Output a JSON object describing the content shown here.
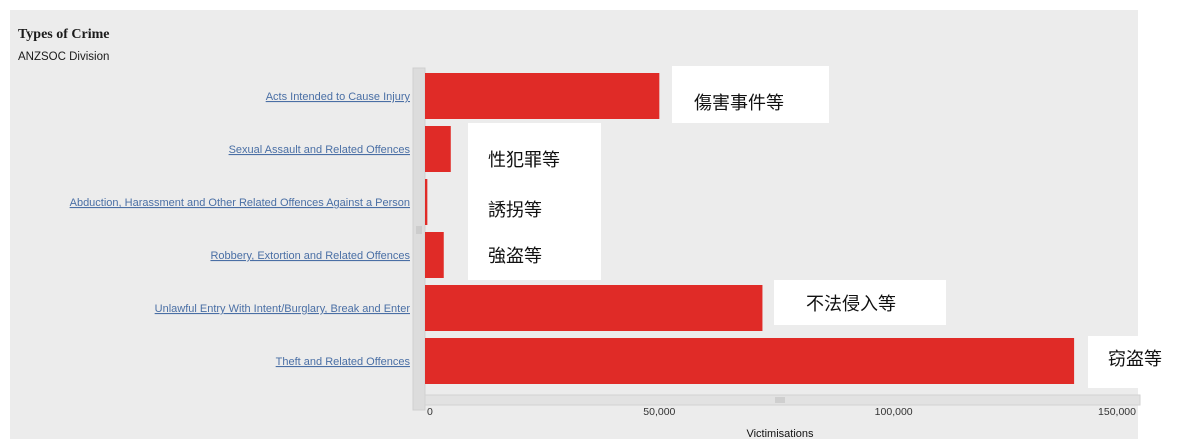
{
  "header": {
    "title": "Types of Crime",
    "subtitle": "ANZSOC Division"
  },
  "chart_data": {
    "type": "bar",
    "orientation": "horizontal",
    "title": "Types of Crime",
    "subtitle": "ANZSOC Division",
    "xlabel": "Victimisations",
    "ylabel": "",
    "xlim": [
      0,
      150000
    ],
    "xticks": [
      0,
      50000,
      100000,
      150000
    ],
    "xtick_labels": [
      "0",
      "50,000",
      "100,000",
      "150,000"
    ],
    "categories": [
      "Acts Intended to Cause Injury",
      "Sexual Assault and Related Offences",
      "Abduction, Harassment and Other Related Offences Against a Person",
      "Robbery, Extortion and Related Offences",
      "Unlawful Entry With Intent/Burglary, Break and Enter",
      "Theft and Related Offences"
    ],
    "values": [
      50000,
      5500,
      500,
      4000,
      72000,
      138500
    ],
    "bar_color": "#e02b27",
    "grid": false,
    "annotations": [
      "傷害事件等",
      "性犯罪等",
      "誘拐等",
      "強盗等",
      "不法侵入等",
      "窃盗等"
    ]
  }
}
